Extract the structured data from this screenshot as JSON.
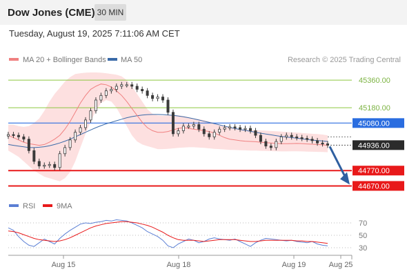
{
  "header": {
    "title": "Dow Jones (CME)",
    "timeframe": "30 MIN",
    "timestamp": "Tuesday, August 19, 2025 7:11:06 AM CET"
  },
  "legend": {
    "ma20": "MA 20 + Bollinger Bands",
    "ma50": "MA 50",
    "copyright": "Research © 2025 Trading Central",
    "rsi": "RSI",
    "ma9": "9MA"
  },
  "colors": {
    "ma20": "#f08080",
    "ma50": "#3a6aa8",
    "bollinger_fill": "#fde0e0",
    "resistance_green": "#8cc63f",
    "pivot_blue": "#2a6de0",
    "support_red": "#e8191a",
    "candle": "#3a3a3a",
    "arrow": "#2f5fa0",
    "rsi": "#5b7fd4",
    "ma9": "#e8191a"
  },
  "chart_data": [
    {
      "type": "candlestick",
      "x_labels": [
        "Aug 15",
        "Aug 18",
        "Aug 19",
        "Aug 25"
      ],
      "ylim": [
        44600,
        45410
      ],
      "levels": [
        {
          "label": "45360.00",
          "value": 45360,
          "kind": "resistance"
        },
        {
          "label": "45180.00",
          "value": 45180,
          "kind": "resistance"
        },
        {
          "label": "45080.00",
          "value": 45080,
          "kind": "pivot"
        },
        {
          "label": "44770.00",
          "value": 44770,
          "kind": "support"
        },
        {
          "label": "44670.00",
          "value": 44670,
          "kind": "support"
        }
      ],
      "last_price": {
        "label": "44936.00",
        "value": 44936
      },
      "projection": {
        "from_value": 44936,
        "to_value": 44670
      },
      "series": [
        {
          "name": "MA 20 + Bollinger Bands"
        },
        {
          "name": "MA 50"
        }
      ],
      "ma20": [
        45000,
        44985,
        44970,
        44955,
        44945,
        44940,
        44935,
        44940,
        44955,
        44975,
        45000,
        45040,
        45090,
        45150,
        45210,
        45260,
        45300,
        45320,
        45335,
        45330,
        45315,
        45290,
        45260,
        45220,
        45175,
        45130,
        45085,
        45050,
        45030,
        45020,
        45020,
        45025,
        45035,
        45045,
        45050,
        45045,
        45040,
        45035,
        45030,
        45025,
        45015,
        45000,
        44985,
        44975,
        44970,
        44965,
        44962,
        44960,
        44958,
        44955,
        44952,
        44950,
        44948,
        44945,
        44945,
        44946,
        44947,
        44946,
        44944,
        44942,
        44940,
        44938,
        44935
      ],
      "bb_upper": [
        45070,
        45070,
        45060,
        45055,
        45060,
        45080,
        45110,
        45160,
        45220,
        45270,
        45310,
        45350,
        45380,
        45400,
        45405,
        45408,
        45410,
        45410,
        45408,
        45405,
        45400,
        45395,
        45385,
        45360,
        45320,
        45270,
        45220,
        45170,
        45140,
        45130,
        45128,
        45130,
        45132,
        45130,
        45125,
        45118,
        45110,
        45105,
        45098,
        45090,
        45080,
        45070,
        45060,
        45050,
        45045,
        45040,
        45038,
        45036,
        45034,
        45032,
        45030,
        45028,
        45026,
        45024,
        45022,
        45020,
        45018,
        45015,
        45012,
        45010,
        45008,
        45005,
        45000
      ],
      "bb_lower": [
        44900,
        44880,
        44860,
        44830,
        44800,
        44770,
        44750,
        44730,
        44720,
        44710,
        44700,
        44720,
        44760,
        44830,
        44920,
        45010,
        45090,
        45160,
        45210,
        45230,
        45220,
        45180,
        45120,
        45060,
        45000,
        44960,
        44940,
        44930,
        44920,
        44910,
        44910,
        44912,
        44915,
        44918,
        44920,
        44922,
        44922,
        44920,
        44918,
        44915,
        44912,
        44910,
        44908,
        44905,
        44904,
        44903,
        44902,
        44900,
        44900,
        44899,
        44898,
        44897,
        44896,
        44895,
        44895,
        44896,
        44896,
        44895,
        44894,
        44893,
        44892,
        44891,
        44890
      ],
      "ma50": [
        44940,
        44935,
        44930,
        44925,
        44920,
        44920,
        44922,
        44926,
        44932,
        44940,
        44950,
        44962,
        44975,
        44990,
        45005,
        45020,
        45035,
        45050,
        45063,
        45075,
        45085,
        45095,
        45105,
        45115,
        45122,
        45128,
        45132,
        45135,
        45136,
        45136,
        45135,
        45133,
        45130,
        45126,
        45121,
        45115,
        45108,
        45100,
        45092,
        45084,
        45076,
        45068,
        45060,
        45052,
        45045,
        45038,
        45032,
        45026,
        45020,
        45014,
        45008,
        45003,
        44998,
        44993,
        44989,
        44985,
        44981,
        44977,
        44973,
        44969,
        44966,
        44963,
        44960
      ],
      "close": [
        45005,
        45000,
        44990,
        44975,
        44900,
        44830,
        44800,
        44805,
        44810,
        44790,
        44880,
        44920,
        44970,
        45020,
        45050,
        45100,
        45160,
        45230,
        45260,
        45290,
        45300,
        45320,
        45330,
        45330,
        45320,
        45300,
        45290,
        45260,
        45240,
        45250,
        45230,
        45150,
        45010,
        45030,
        45060,
        45060,
        45070,
        45040,
        45010,
        44990,
        45020,
        45040,
        45050,
        45055,
        45050,
        45040,
        45045,
        45030,
        45000,
        44960,
        44930,
        44920,
        44960,
        44990,
        45000,
        44990,
        44985,
        44980,
        44975,
        44965,
        44950,
        44945,
        44936
      ]
    },
    {
      "type": "line",
      "x_labels": [
        "Aug 15",
        "Aug 18",
        "Aug 19",
        "Aug 25"
      ],
      "ylim": [
        20,
        80
      ],
      "y_ticks": [
        70,
        50,
        30
      ],
      "series": [
        {
          "name": "RSI",
          "values": [
            62,
            58,
            48,
            40,
            34,
            32,
            38,
            44,
            40,
            36,
            45,
            52,
            58,
            63,
            68,
            70,
            69,
            71,
            72,
            74,
            73,
            75,
            74,
            73,
            70,
            66,
            62,
            56,
            52,
            48,
            42,
            33,
            30,
            36,
            40,
            44,
            42,
            38,
            40,
            44,
            46,
            44,
            43,
            42,
            44,
            40,
            36,
            32,
            38,
            42,
            45,
            44,
            43,
            42,
            41,
            42,
            40,
            39,
            38,
            40,
            36,
            34,
            33
          ]
        },
        {
          "name": "9MA",
          "values": [
            57,
            56,
            54,
            51,
            48,
            45,
            43,
            42,
            41,
            40,
            41,
            43,
            46,
            50,
            54,
            58,
            62,
            65,
            67,
            69,
            70,
            71,
            72,
            72,
            71,
            70,
            68,
            66,
            63,
            59,
            55,
            50,
            46,
            43,
            42,
            42,
            42,
            41,
            40,
            41,
            42,
            43,
            43,
            43,
            43,
            42,
            41,
            40,
            40,
            41,
            42,
            42,
            42,
            42,
            42,
            42,
            41,
            41,
            40,
            40,
            39,
            38,
            37
          ]
        }
      ]
    }
  ]
}
